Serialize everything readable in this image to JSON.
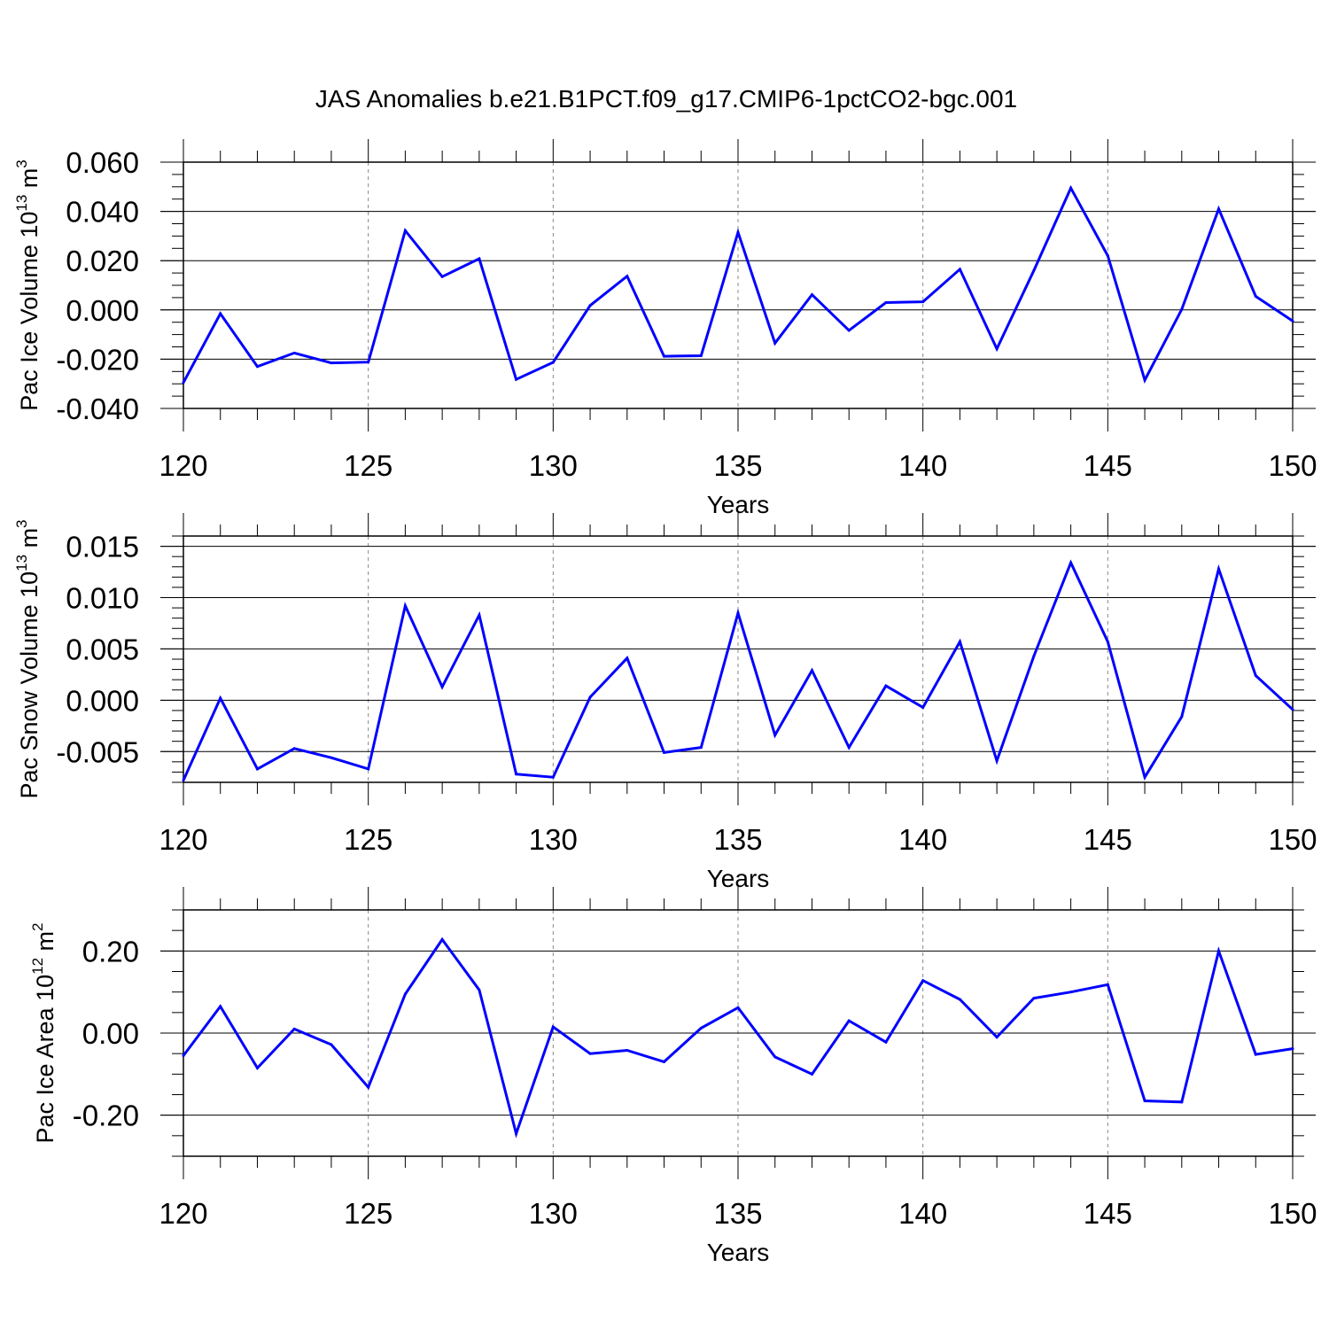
{
  "title": "JAS Anomalies b.e21.B1PCT.f09_g17.CMIP6-1pctCO2-bgc.001",
  "colors": {
    "line": "#0000ff",
    "axis": "#000000",
    "grid": "#888888"
  },
  "chart_data": [
    {
      "type": "line",
      "ylabel": "Pac Ice Volume 10",
      "ylabel_exp": "13",
      "ylabel_unit": "m",
      "ylabel_unit_exp": "3",
      "xlabel": "Years",
      "xlim": [
        120,
        150
      ],
      "ylim": [
        -0.04,
        0.06
      ],
      "x_ticks": [
        120,
        125,
        130,
        135,
        140,
        145,
        150
      ],
      "y_ticks": [
        -0.04,
        -0.02,
        0.0,
        0.02,
        0.04,
        0.06
      ],
      "y_tick_labels": [
        "-0.040",
        "-0.020",
        "0.000",
        "0.020",
        "0.040",
        "0.060"
      ],
      "x_grid": [
        125,
        130,
        135,
        140,
        145
      ],
      "x": [
        120,
        121,
        122,
        123,
        124,
        125,
        126,
        127,
        128,
        129,
        130,
        131,
        132,
        133,
        134,
        135,
        136,
        137,
        138,
        139,
        140,
        141,
        142,
        143,
        144,
        145,
        146,
        147,
        148,
        149,
        150
      ],
      "values": [
        -0.0295,
        -0.0015,
        -0.023,
        -0.0175,
        -0.0215,
        -0.0212,
        0.0322,
        0.0135,
        0.0208,
        -0.0282,
        -0.0213,
        0.0018,
        0.0137,
        -0.0188,
        -0.0186,
        0.0315,
        -0.0135,
        0.0062,
        -0.0083,
        0.003,
        0.0033,
        0.0165,
        -0.0158,
        0.016,
        0.0495,
        0.022,
        -0.0285,
        0.0002,
        0.041,
        0.0055,
        -0.0045
      ]
    },
    {
      "type": "line",
      "ylabel": "Pac Snow Volume 10",
      "ylabel_exp": "13",
      "ylabel_unit": "m",
      "ylabel_unit_exp": "3",
      "xlabel": "Years",
      "xlim": [
        120,
        150
      ],
      "ylim": [
        -0.008,
        0.016
      ],
      "x_ticks": [
        120,
        125,
        130,
        135,
        140,
        145,
        150
      ],
      "y_ticks": [
        -0.005,
        0.0,
        0.005,
        0.01,
        0.015
      ],
      "y_tick_labels": [
        "-0.005",
        "0.000",
        "0.005",
        "0.010",
        "0.015"
      ],
      "x_grid": [
        125,
        130,
        135,
        140,
        145
      ],
      "x": [
        120,
        121,
        122,
        123,
        124,
        125,
        126,
        127,
        128,
        129,
        130,
        131,
        132,
        133,
        134,
        135,
        136,
        137,
        138,
        139,
        140,
        141,
        142,
        143,
        144,
        145,
        146,
        147,
        148,
        149,
        150
      ],
      "values": [
        -0.0078,
        0.0002,
        -0.0067,
        -0.0047,
        -0.0056,
        -0.0067,
        0.0092,
        0.0013,
        0.0083,
        -0.0072,
        -0.0075,
        0.0003,
        0.0041,
        -0.0051,
        -0.0046,
        0.0085,
        -0.0034,
        0.0029,
        -0.0046,
        0.0014,
        -0.0007,
        0.0057,
        -0.0059,
        0.0043,
        0.0134,
        0.0057,
        -0.0075,
        -0.0016,
        0.0128,
        0.0024,
        -0.0009
      ]
    },
    {
      "type": "line",
      "ylabel": "Pac Ice Area 10",
      "ylabel_exp": "12",
      "ylabel_unit": "m",
      "ylabel_unit_exp": "2",
      "xlabel": "Years",
      "xlim": [
        120,
        150
      ],
      "ylim": [
        -0.3,
        0.3
      ],
      "x_ticks": [
        120,
        125,
        130,
        135,
        140,
        145,
        150
      ],
      "y_ticks": [
        -0.2,
        0.0,
        0.2
      ],
      "y_tick_labels": [
        "-0.20",
        "0.00",
        "0.20"
      ],
      "x_grid": [
        125,
        130,
        135,
        140,
        145
      ],
      "x": [
        120,
        121,
        122,
        123,
        124,
        125,
        126,
        127,
        128,
        129,
        130,
        131,
        132,
        133,
        134,
        135,
        136,
        137,
        138,
        139,
        140,
        141,
        142,
        143,
        144,
        145,
        146,
        147,
        148,
        149,
        150
      ],
      "values": [
        -0.055,
        0.065,
        -0.085,
        0.01,
        -0.028,
        -0.132,
        0.095,
        0.228,
        0.105,
        -0.245,
        0.015,
        -0.05,
        -0.042,
        -0.07,
        0.012,
        0.062,
        -0.058,
        -0.1,
        0.03,
        -0.022,
        0.128,
        0.082,
        -0.01,
        0.085,
        0.1,
        0.118,
        -0.165,
        -0.168,
        0.2,
        -0.052,
        -0.038
      ]
    }
  ]
}
